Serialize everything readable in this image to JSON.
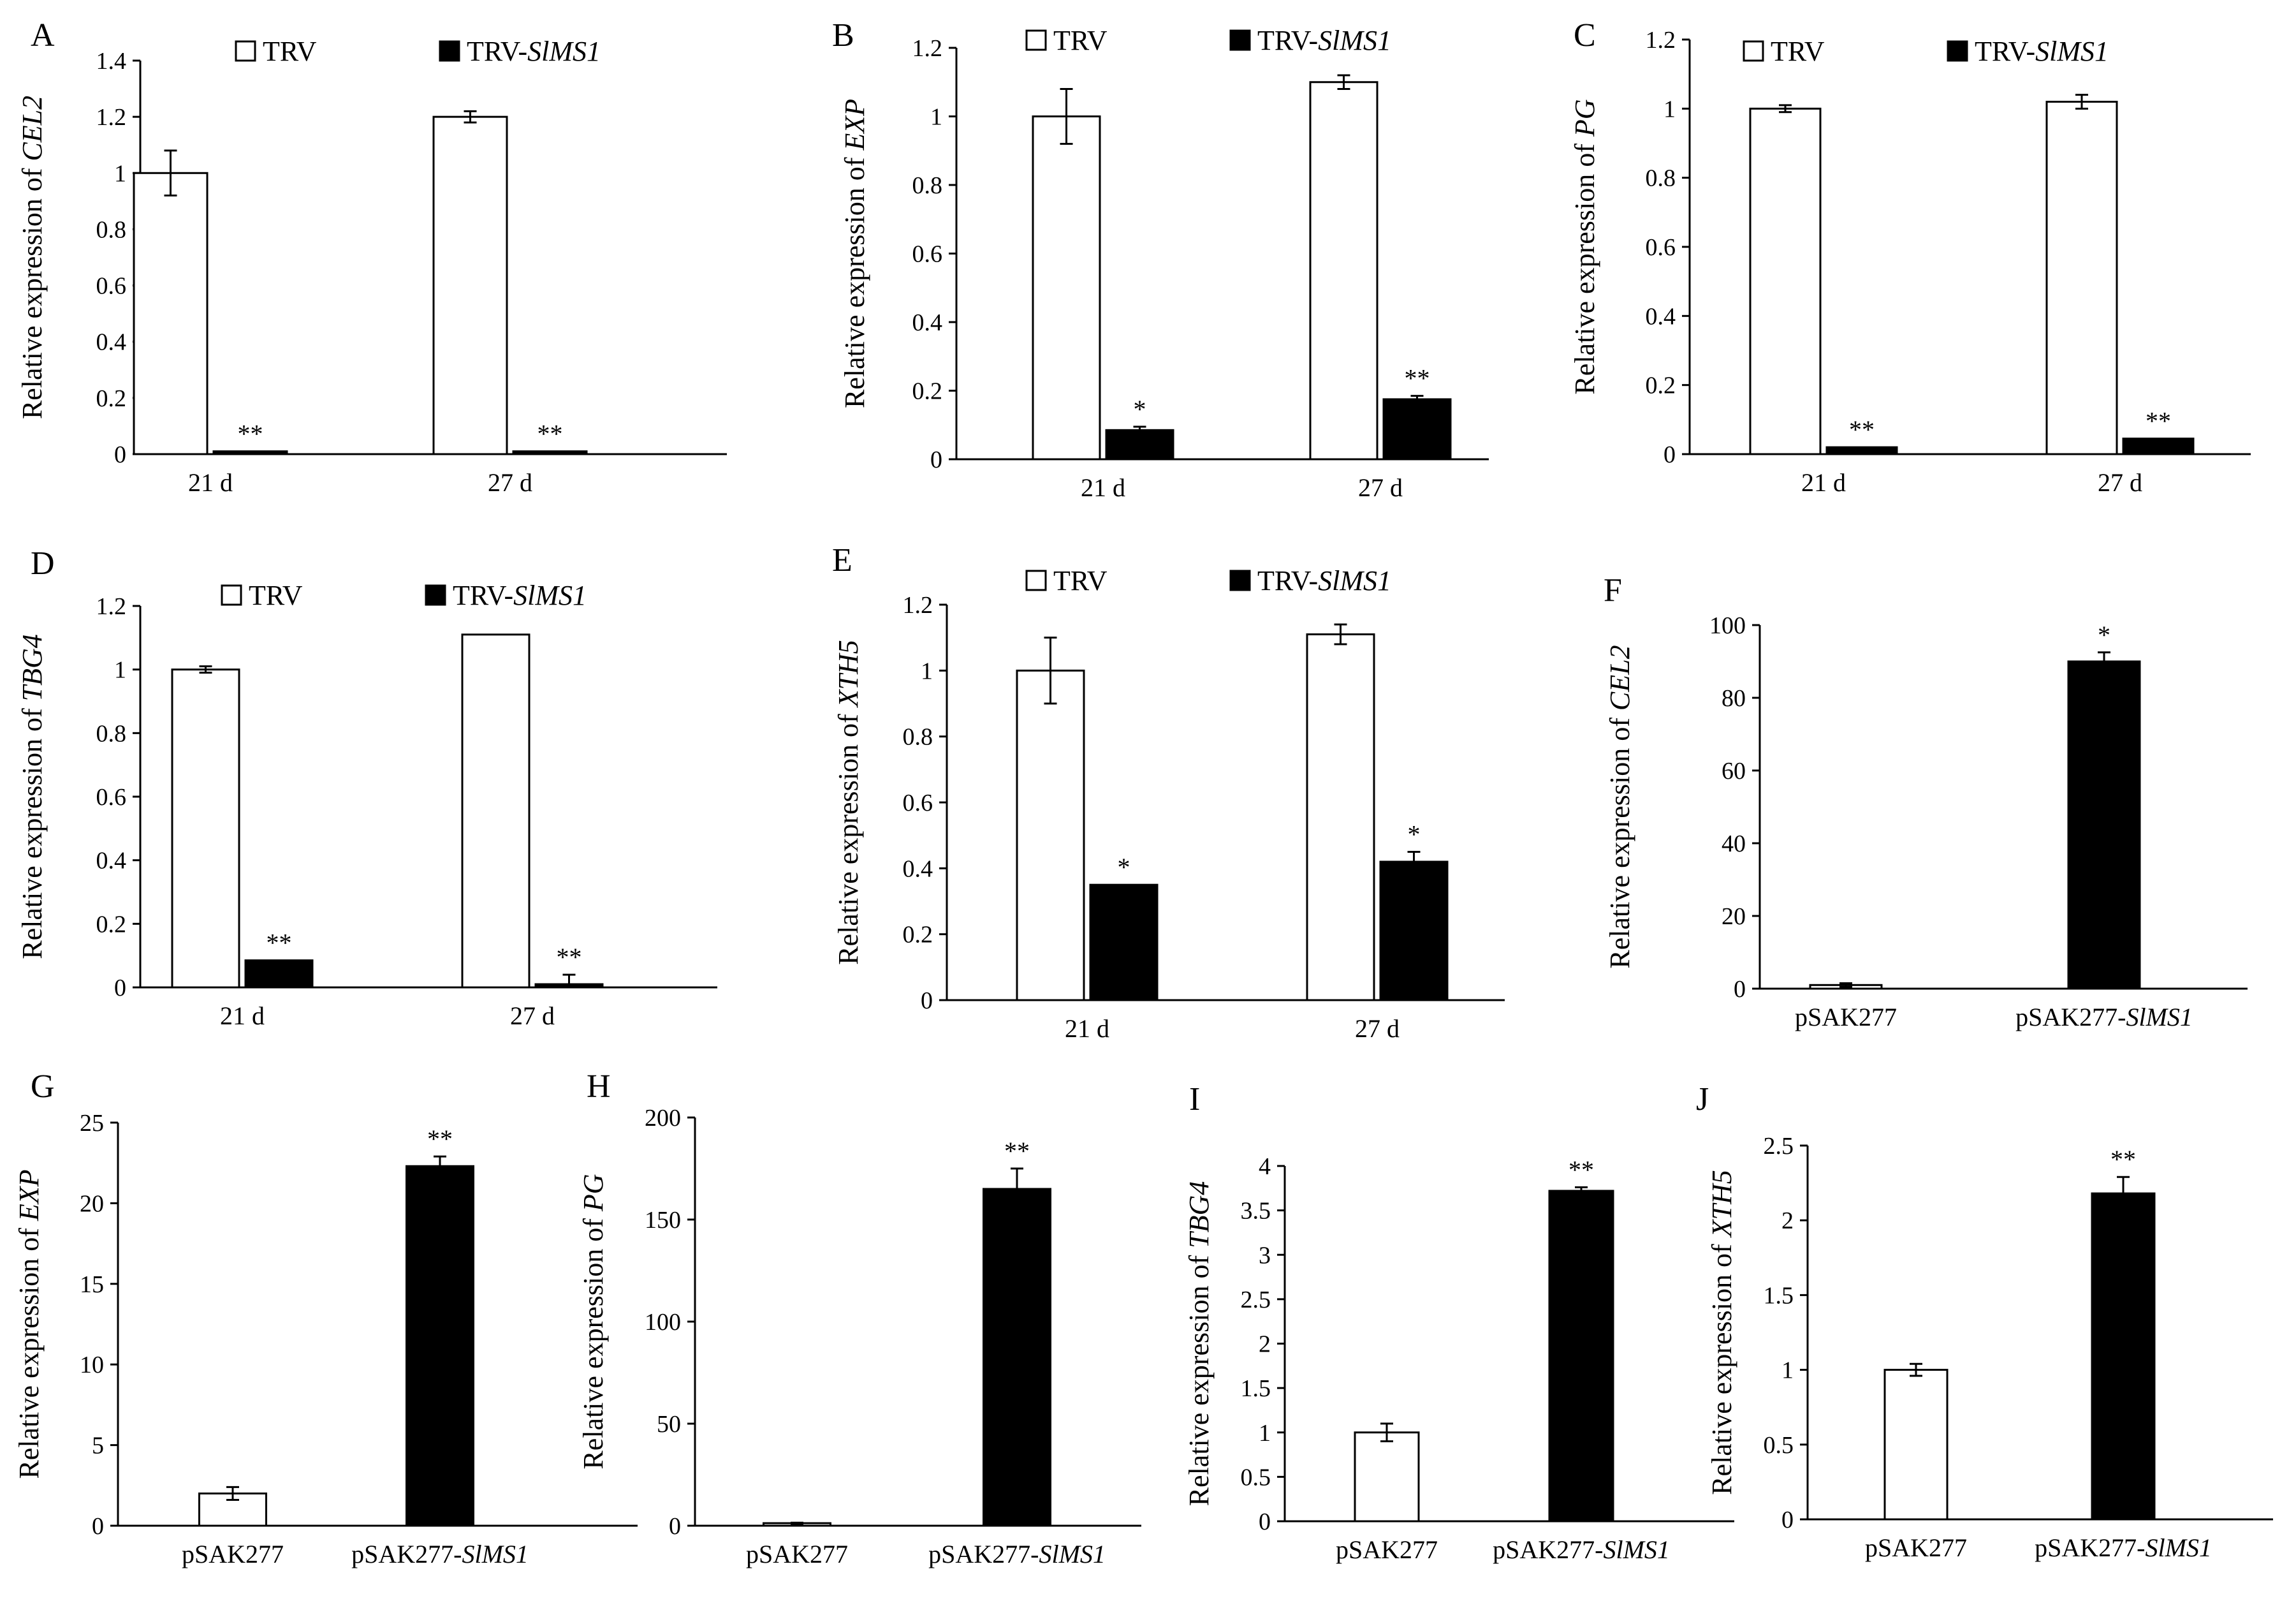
{
  "figure_type": "multi-panel bar chart",
  "chart_data": [
    {
      "panel": "A",
      "type": "bar",
      "title": "",
      "xlabel": "",
      "ylabel_prefix": "Relative expression of ",
      "ylabel_gene": "CEL2",
      "categories": [
        "21 d",
        "27 d"
      ],
      "ylim": [
        0,
        1.4
      ],
      "yticks": [
        "0",
        "0.2",
        "0.4",
        "0.6",
        "0.8",
        "1",
        "1.2",
        "1.4"
      ],
      "legend": true,
      "series": [
        {
          "name": "TRV",
          "name_main": "TRV",
          "name_italic": "",
          "fill": "#ffffff",
          "values": [
            1.0,
            1.2
          ],
          "errors": [
            0.08,
            0.02
          ],
          "sig": [
            "",
            ""
          ]
        },
        {
          "name": "TRV-SlMS1",
          "name_main": "TRV-",
          "name_italic": "SlMS1",
          "fill": "#000000",
          "values": [
            0.01,
            0.01
          ],
          "errors": [
            0,
            0
          ],
          "sig": [
            "**",
            "**"
          ]
        }
      ]
    },
    {
      "panel": "B",
      "type": "bar",
      "title": "",
      "xlabel": "",
      "ylabel_prefix": "Relative expression of ",
      "ylabel_gene": "EXP",
      "categories": [
        "21 d",
        "27 d"
      ],
      "ylim": [
        0,
        1.2
      ],
      "yticks": [
        "0",
        "0.2",
        "0.4",
        "0.6",
        "0.8",
        "1",
        "1.2"
      ],
      "legend": true,
      "series": [
        {
          "name": "TRV",
          "name_main": "TRV",
          "name_italic": "",
          "fill": "#ffffff",
          "values": [
            1.0,
            1.1
          ],
          "errors": [
            0.08,
            0.02
          ],
          "sig": [
            "",
            ""
          ]
        },
        {
          "name": "TRV-SlMS1",
          "name_main": "TRV-",
          "name_italic": "SlMS1",
          "fill": "#000000",
          "values": [
            0.085,
            0.175
          ],
          "errors": [
            0.01,
            0.01
          ],
          "sig": [
            "*",
            "**"
          ]
        }
      ]
    },
    {
      "panel": "C",
      "type": "bar",
      "title": "",
      "xlabel": "",
      "ylabel_prefix": "Relative expression of ",
      "ylabel_gene": "PG",
      "categories": [
        "21 d",
        "27 d"
      ],
      "ylim": [
        0,
        1.2
      ],
      "yticks": [
        "0",
        "0.2",
        "0.4",
        "0.6",
        "0.8",
        "1",
        "1.2"
      ],
      "legend": true,
      "series": [
        {
          "name": "TRV",
          "name_main": "TRV",
          "name_italic": "",
          "fill": "#ffffff",
          "values": [
            1.0,
            1.02
          ],
          "errors": [
            0.01,
            0.02
          ],
          "sig": [
            "",
            ""
          ]
        },
        {
          "name": "TRV-SlMS1",
          "name_main": "TRV-",
          "name_italic": "SlMS1",
          "fill": "#000000",
          "values": [
            0.02,
            0.045
          ],
          "errors": [
            0,
            0
          ],
          "sig": [
            "**",
            "**"
          ]
        }
      ]
    },
    {
      "panel": "D",
      "type": "bar",
      "title": "",
      "xlabel": "",
      "ylabel_prefix": "Relative expression of ",
      "ylabel_gene": "TBG4",
      "categories": [
        "21 d",
        "27 d"
      ],
      "ylim": [
        0,
        1.2
      ],
      "yticks": [
        "0",
        "0.2",
        "0.4",
        "0.6",
        "0.8",
        "1",
        "1.2"
      ],
      "legend": true,
      "series": [
        {
          "name": "TRV",
          "name_main": "TRV",
          "name_italic": "",
          "fill": "#ffffff",
          "values": [
            1.0,
            1.11
          ],
          "errors": [
            0.01,
            0
          ],
          "sig": [
            "",
            ""
          ]
        },
        {
          "name": "TRV-SlMS1",
          "name_main": "TRV-",
          "name_italic": "SlMS1",
          "fill": "#000000",
          "values": [
            0.085,
            0.01
          ],
          "errors": [
            0,
            0.03
          ],
          "sig": [
            "**",
            "**"
          ]
        }
      ]
    },
    {
      "panel": "E",
      "type": "bar",
      "title": "",
      "xlabel": "",
      "ylabel_prefix": "Relative expression of ",
      "ylabel_gene": "XTH5",
      "categories": [
        "21 d",
        "27 d"
      ],
      "ylim": [
        0,
        1.2
      ],
      "yticks": [
        "0",
        "0.2",
        "0.4",
        "0.6",
        "0.8",
        "1",
        "1.2"
      ],
      "legend": true,
      "series": [
        {
          "name": "TRV",
          "name_main": "TRV",
          "name_italic": "",
          "fill": "#ffffff",
          "values": [
            1.0,
            1.11
          ],
          "errors": [
            0.1,
            0.03
          ],
          "sig": [
            "",
            ""
          ]
        },
        {
          "name": "TRV-SlMS1",
          "name_main": "TRV-",
          "name_italic": "SlMS1",
          "fill": "#000000",
          "values": [
            0.35,
            0.42
          ],
          "errors": [
            0,
            0.03
          ],
          "sig": [
            "*",
            "*"
          ]
        }
      ]
    },
    {
      "panel": "F",
      "type": "bar",
      "title": "",
      "xlabel": "",
      "ylabel_prefix": "Relative expression of ",
      "ylabel_gene": "CEL2",
      "categories": [
        "pSAK277",
        "pSAK277-SlMS1"
      ],
      "ylim": [
        0,
        100
      ],
      "yticks": [
        "0",
        "20",
        "40",
        "60",
        "80",
        "100"
      ],
      "legend": false,
      "series": [
        {
          "name": "expression",
          "values": [
            1.0,
            90
          ],
          "errors": [
            0.5,
            2.5
          ],
          "fills": [
            "#ffffff",
            "#000000"
          ],
          "sig": [
            "",
            "*"
          ]
        }
      ]
    },
    {
      "panel": "G",
      "type": "bar",
      "title": "",
      "xlabel": "",
      "ylabel_prefix": "Relative expression of ",
      "ylabel_gene": "EXP",
      "categories": [
        "pSAK277",
        "pSAK277-SlMS1"
      ],
      "ylim": [
        0,
        25
      ],
      "yticks": [
        "0",
        "5",
        "10",
        "15",
        "20",
        "25"
      ],
      "legend": false,
      "series": [
        {
          "name": "expression",
          "values": [
            2.0,
            22.3
          ],
          "errors": [
            0.4,
            0.6
          ],
          "fills": [
            "#ffffff",
            "#000000"
          ],
          "sig": [
            "",
            "**"
          ]
        }
      ]
    },
    {
      "panel": "H",
      "type": "bar",
      "title": "",
      "xlabel": "",
      "ylabel_prefix": "Relative expression of ",
      "ylabel_gene": "PG",
      "categories": [
        "pSAK277",
        "pSAK277-SlMS1"
      ],
      "ylim": [
        0,
        200
      ],
      "yticks": [
        "0",
        "50",
        "100",
        "150",
        "200"
      ],
      "legend": false,
      "series": [
        {
          "name": "expression",
          "values": [
            1.0,
            165
          ],
          "errors": [
            0.5,
            10
          ],
          "fills": [
            "#ffffff",
            "#000000"
          ],
          "sig": [
            "",
            "**"
          ]
        }
      ]
    },
    {
      "panel": "I",
      "type": "bar",
      "title": "",
      "xlabel": "",
      "ylabel_prefix": "Relative expression of ",
      "ylabel_gene": "TBG4",
      "categories": [
        "pSAK277",
        "pSAK277-SlMS1"
      ],
      "ylim": [
        0,
        4
      ],
      "yticks": [
        "0",
        "0.5",
        "1",
        "1.5",
        "2",
        "2.5",
        "3",
        "3.5",
        "4"
      ],
      "legend": false,
      "series": [
        {
          "name": "expression",
          "values": [
            1.0,
            3.72
          ],
          "errors": [
            0.1,
            0.04
          ],
          "fills": [
            "#ffffff",
            "#000000"
          ],
          "sig": [
            "",
            "**"
          ]
        }
      ]
    },
    {
      "panel": "J",
      "type": "bar",
      "title": "",
      "xlabel": "",
      "ylabel_prefix": "Relative expression of ",
      "ylabel_gene": "XTH5",
      "categories": [
        "pSAK277",
        "pSAK277-SlMS1"
      ],
      "ylim": [
        0,
        2.5
      ],
      "yticks": [
        "0",
        "0.5",
        "1",
        "1.5",
        "2",
        "2.5"
      ],
      "legend": false,
      "series": [
        {
          "name": "expression",
          "values": [
            1.0,
            2.18
          ],
          "errors": [
            0.04,
            0.11
          ],
          "fills": [
            "#ffffff",
            "#000000"
          ],
          "sig": [
            "",
            "**"
          ]
        }
      ]
    }
  ]
}
